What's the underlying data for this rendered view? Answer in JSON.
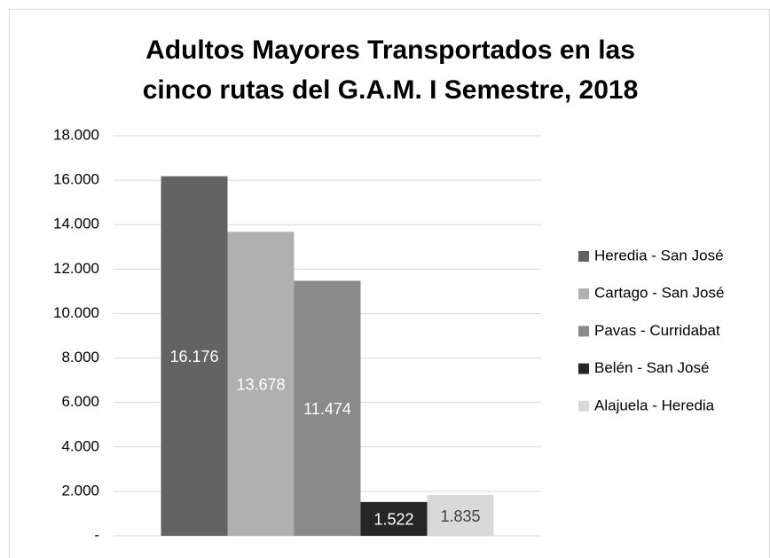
{
  "chart_data": {
    "type": "bar",
    "title": [
      "Adultos Mayores Transportados en las",
      "cinco rutas del G.A.M. I Semestre, 2018"
    ],
    "categories": [
      null
    ],
    "series": [
      {
        "name": "Heredia - San José",
        "color": "#636363",
        "values": [
          16176
        ],
        "value_labels": [
          "16.176"
        ]
      },
      {
        "name": "Cartago - San José",
        "color": "#b0b0b0",
        "values": [
          13678
        ],
        "value_labels": [
          "13.678"
        ]
      },
      {
        "name": "Pavas - Curridabat",
        "color": "#8a8a8a",
        "values": [
          11474
        ],
        "value_labels": [
          "11.474"
        ]
      },
      {
        "name": "Belén - San José",
        "color": "#262626",
        "values": [
          1522
        ],
        "value_labels": [
          "1.522"
        ]
      },
      {
        "name": "Alajuela - Heredia",
        "color": "#d9d9d9",
        "values": [
          1835
        ],
        "value_labels": [
          "1.835"
        ]
      }
    ],
    "ylim": [
      0,
      18000
    ],
    "yticks": [
      {
        "value": 0,
        "label": "-"
      },
      {
        "value": 2000,
        "label": "2.000"
      },
      {
        "value": 4000,
        "label": "4.000"
      },
      {
        "value": 6000,
        "label": "6.000"
      },
      {
        "value": 8000,
        "label": "8.000"
      },
      {
        "value": 10000,
        "label": "10.000"
      },
      {
        "value": 12000,
        "label": "12.000"
      },
      {
        "value": 14000,
        "label": "14.000"
      },
      {
        "value": 16000,
        "label": "16.000"
      },
      {
        "value": 18000,
        "label": "18.000"
      }
    ],
    "grid": true,
    "legend": "right"
  }
}
